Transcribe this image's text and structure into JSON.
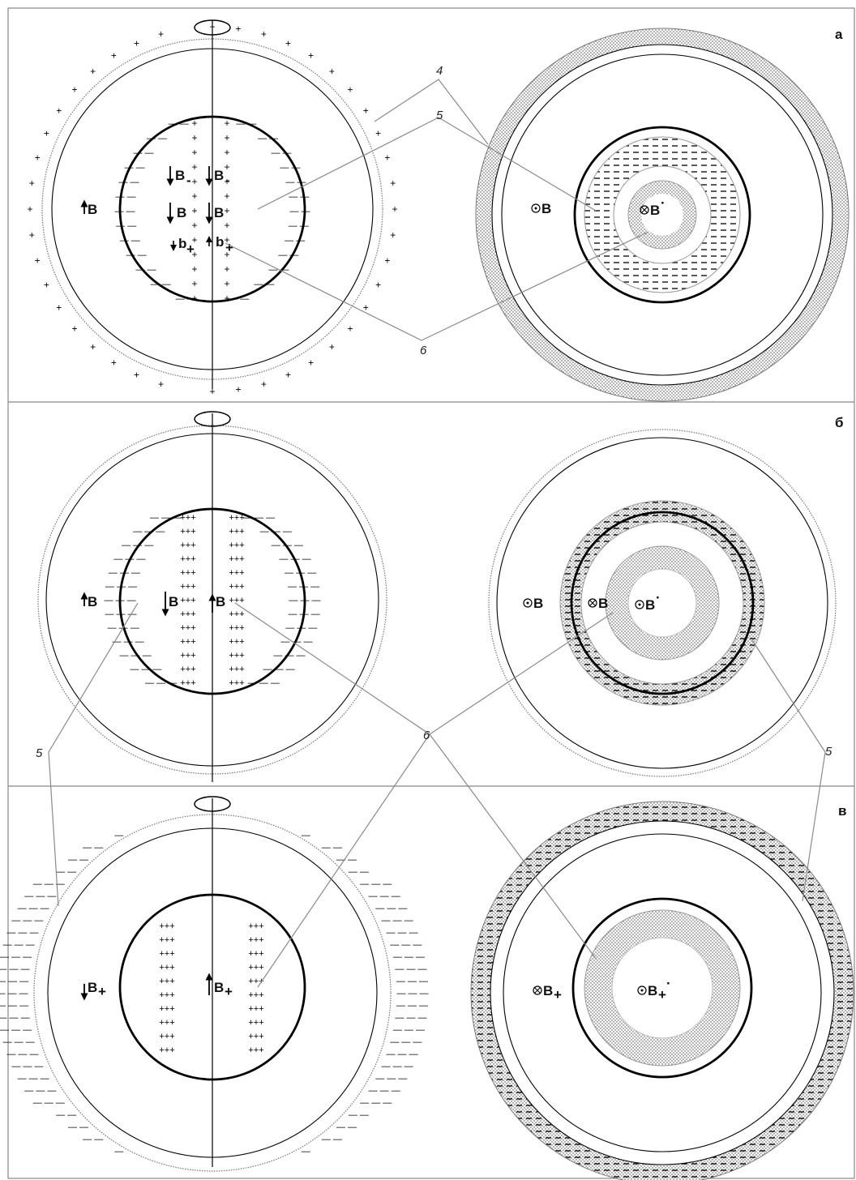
{
  "panels": [
    {
      "id": "a",
      "letter": "а",
      "left_labels": {
        "outer_b": "B",
        "b1": "B",
        "b2": "B",
        "b3": "B",
        "b4": "B",
        "b5": "b",
        "b6": "b"
      },
      "left_subs": {
        "b1": "-",
        "b2": "-",
        "b5": "+",
        "b6": "+"
      },
      "right_labels": {
        "outer": "B",
        "inner": "B",
        "inner_sup": "·"
      }
    },
    {
      "id": "b",
      "letter": "б",
      "left_labels": {
        "outer_b": "B",
        "b1": "B",
        "b2": "B"
      },
      "right_labels": {
        "outer": "B",
        "mid": "B",
        "inner": "B",
        "inner_sup": "·"
      }
    },
    {
      "id": "c",
      "letter": "в",
      "left_labels": {
        "outer_b": "B",
        "inner_b": "B"
      },
      "left_subs": {
        "outer_b": "+",
        "inner_b": "+"
      },
      "right_labels": {
        "outer": "B",
        "inner": "B",
        "inner_sup": "·"
      },
      "right_subs": {
        "outer": "+",
        "inner": "+"
      }
    }
  ],
  "callouts": {
    "n4": "4",
    "n5a": "5",
    "n6a": "6",
    "n5b_left": "5",
    "n6b": "6",
    "n5b_right": "5"
  },
  "colors": {
    "line": "#000000",
    "leader": "#8a8a8a",
    "stipple": "#555555"
  }
}
